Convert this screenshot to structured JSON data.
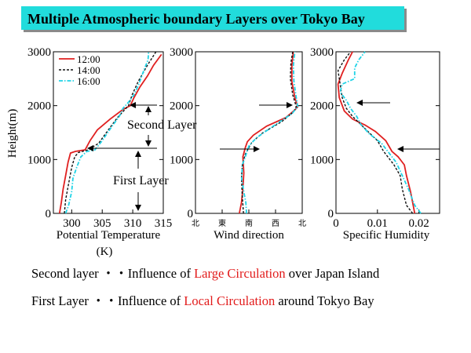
{
  "title": "Multiple Atmospheric boundary Layers over Tokyo Bay",
  "colors": {
    "t1200": "#e02020",
    "t1400": "#111111",
    "t1600": "#1fd3e6",
    "title_bg": "#21dcdc",
    "highlight": "#e21b1b"
  },
  "chart_data": [
    {
      "type": "line",
      "panel": "temperature",
      "xlabel": "Potential Temperature",
      "xlabel_unit": "(K)",
      "ylabel": "Height(m)",
      "xlim": [
        297,
        315
      ],
      "ylim": [
        0,
        3000
      ],
      "xticks": [
        "300",
        "305",
        "310",
        "315"
      ],
      "yticks": [
        "0",
        "1000",
        "2000",
        "3000"
      ],
      "legend": [
        "12:00",
        "14:00",
        "16:00"
      ],
      "legend_position": "top-left",
      "annotations": [
        "Second Layer",
        "First Layer"
      ],
      "series": [
        {
          "name": "12:00",
          "points": [
            [
              298.0,
              0
            ],
            [
              298.3,
              200
            ],
            [
              298.6,
              450
            ],
            [
              299.0,
              700
            ],
            [
              299.4,
              950
            ],
            [
              299.8,
              1120
            ],
            [
              300.6,
              1150
            ],
            [
              302.2,
              1180
            ],
            [
              303.0,
              1350
            ],
            [
              304.2,
              1550
            ],
            [
              306.3,
              1750
            ],
            [
              308.4,
              1930
            ],
            [
              309.6,
              2000
            ],
            [
              310.2,
              2150
            ],
            [
              311.2,
              2350
            ],
            [
              312.4,
              2550
            ],
            [
              313.4,
              2750
            ],
            [
              314.7,
              2950
            ]
          ]
        },
        {
          "name": "14:00",
          "points": [
            [
              298.8,
              0
            ],
            [
              299.0,
              250
            ],
            [
              299.5,
              550
            ],
            [
              300.0,
              850
            ],
            [
              300.5,
              1050
            ],
            [
              301.1,
              1130
            ],
            [
              302.7,
              1180
            ],
            [
              304.4,
              1300
            ],
            [
              306.0,
              1550
            ],
            [
              307.5,
              1780
            ],
            [
              308.5,
              1900
            ],
            [
              309.3,
              2000
            ],
            [
              309.9,
              2200
            ],
            [
              310.9,
              2450
            ],
            [
              312.4,
              2750
            ],
            [
              313.8,
              3000
            ]
          ]
        },
        {
          "name": "16:00",
          "points": [
            [
              299.0,
              0
            ],
            [
              299.5,
              150
            ],
            [
              300.0,
              400
            ],
            [
              300.2,
              650
            ],
            [
              300.8,
              850
            ],
            [
              301.5,
              1050
            ],
            [
              302.5,
              1150
            ],
            [
              303.8,
              1180
            ],
            [
              305.0,
              1350
            ],
            [
              306.5,
              1600
            ],
            [
              307.8,
              1800
            ],
            [
              308.4,
              1950
            ],
            [
              309.2,
              2050
            ],
            [
              310.2,
              2200
            ],
            [
              311.0,
              2400
            ],
            [
              311.8,
              2650
            ],
            [
              312.5,
              2850
            ],
            [
              312.6,
              3000
            ]
          ]
        }
      ]
    },
    {
      "type": "line",
      "panel": "wind",
      "xlabel": "Wind direction",
      "ylim": [
        0,
        3000
      ],
      "xticks": [
        "北",
        "東",
        "南",
        "西",
        "北"
      ],
      "xlim": [
        0,
        360
      ],
      "series": [
        {
          "name": "12:00",
          "points": [
            [
              148,
              0
            ],
            [
              155,
              200
            ],
            [
              160,
              450
            ],
            [
              163,
              750
            ],
            [
              160,
              1050
            ],
            [
              168,
              1220
            ],
            [
              175,
              1330
            ],
            [
              195,
              1450
            ],
            [
              240,
              1620
            ],
            [
              305,
              1780
            ],
            [
              335,
              1920
            ],
            [
              345,
              1980
            ],
            [
              335,
              2150
            ],
            [
              325,
              2450
            ],
            [
              325,
              2750
            ],
            [
              330,
              3000
            ]
          ]
        },
        {
          "name": "14:00",
          "points": [
            [
              162,
              0
            ],
            [
              158,
              300
            ],
            [
              155,
              650
            ],
            [
              158,
              900
            ],
            [
              168,
              1100
            ],
            [
              190,
              1320
            ],
            [
              228,
              1500
            ],
            [
              290,
              1700
            ],
            [
              330,
              1880
            ],
            [
              340,
              1980
            ],
            [
              328,
              2200
            ],
            [
              320,
              2500
            ],
            [
              322,
              2800
            ],
            [
              328,
              3000
            ]
          ]
        },
        {
          "name": "16:00",
          "points": [
            [
              172,
              0
            ],
            [
              170,
              200
            ],
            [
              163,
              400
            ],
            [
              156,
              650
            ],
            [
              158,
              900
            ],
            [
              168,
              1050
            ],
            [
              180,
              1250
            ],
            [
              205,
              1400
            ],
            [
              270,
              1650
            ],
            [
              325,
              1850
            ],
            [
              345,
              1980
            ],
            [
              340,
              2150
            ],
            [
              332,
              2450
            ],
            [
              330,
              2750
            ],
            [
              335,
              3000
            ]
          ]
        }
      ]
    },
    {
      "type": "line",
      "panel": "humidity",
      "xlabel": "Specific Humidity",
      "xlim": [
        0,
        0.025
      ],
      "ylim": [
        0,
        3000
      ],
      "xticks": [
        "0",
        "0.01",
        "0.02"
      ],
      "series": [
        {
          "name": "12:00",
          "points": [
            [
              0.019,
              0
            ],
            [
              0.0185,
              200
            ],
            [
              0.018,
              400
            ],
            [
              0.017,
              700
            ],
            [
              0.0165,
              900
            ],
            [
              0.015,
              1050
            ],
            [
              0.0135,
              1150
            ],
            [
              0.012,
              1350
            ],
            [
              0.0095,
              1520
            ],
            [
              0.007,
              1640
            ],
            [
              0.004,
              1750
            ],
            [
              0.002,
              1900
            ],
            [
              0.0008,
              2150
            ],
            [
              0.0005,
              2400
            ],
            [
              0.0015,
              2600
            ],
            [
              0.003,
              2850
            ],
            [
              0.004,
              3000
            ]
          ]
        },
        {
          "name": "14:00",
          "points": [
            [
              0.0185,
              0
            ],
            [
              0.017,
              150
            ],
            [
              0.016,
              450
            ],
            [
              0.0155,
              700
            ],
            [
              0.014,
              900
            ],
            [
              0.0125,
              1050
            ],
            [
              0.0115,
              1150
            ],
            [
              0.01,
              1350
            ],
            [
              0.008,
              1500
            ],
            [
              0.006,
              1650
            ],
            [
              0.004,
              1800
            ],
            [
              0.0025,
              1950
            ],
            [
              0.0015,
              2150
            ],
            [
              0.001,
              2400
            ],
            [
              0.0005,
              2650
            ],
            [
              0.002,
              2850
            ],
            [
              0.0035,
              3000
            ]
          ]
        },
        {
          "name": "16:00",
          "points": [
            [
              0.0205,
              0
            ],
            [
              0.019,
              150
            ],
            [
              0.0175,
              450
            ],
            [
              0.016,
              700
            ],
            [
              0.0145,
              950
            ],
            [
              0.0125,
              1150
            ],
            [
              0.011,
              1300
            ],
            [
              0.008,
              1480
            ],
            [
              0.006,
              1650
            ],
            [
              0.005,
              1800
            ],
            [
              0.0035,
              1950
            ],
            [
              0.0025,
              2100
            ],
            [
              0.001,
              2250
            ],
            [
              0.0015,
              2400
            ],
            [
              0.0045,
              2500
            ],
            [
              0.0045,
              2700
            ],
            [
              0.0055,
              2850
            ],
            [
              0.007,
              3000
            ]
          ]
        }
      ]
    }
  ],
  "summary": {
    "line1": {
      "prefix": "Second layer ・・Influence of ",
      "highlight": "Large Circulation",
      "suffix": " over Japan Island"
    },
    "line2": {
      "prefix": "First  Layer   ・・Influence of ",
      "highlight": "Local Circulation",
      "suffix": " around Tokyo Bay"
    }
  }
}
